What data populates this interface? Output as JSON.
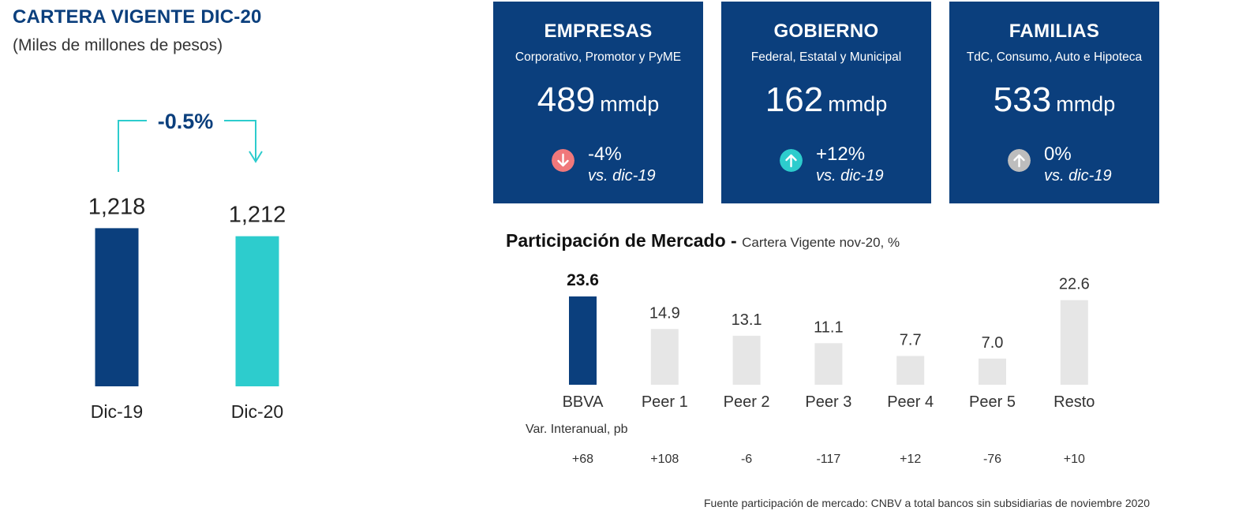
{
  "left": {
    "title": "CARTERA VIGENTE DIC-20",
    "subtitle": "(Miles de millones de pesos)",
    "change_label": "-0.5%"
  },
  "cards": [
    {
      "title": "EMPRESAS",
      "subtitle": "Corporativo, Promotor y PyME",
      "value": "489",
      "unit": "mmdp",
      "change": "-4%",
      "vs_word": "vs.",
      "vs_rest": " dic-19",
      "trend": "down",
      "icon": "arrow-down-icon",
      "icon_color": "#f0787b"
    },
    {
      "title": "GOBIERNO",
      "subtitle": "Federal, Estatal y Municipal",
      "value": "162",
      "unit": "mmdp",
      "change": "+12%",
      "vs_word": "vs.",
      "vs_rest": " dic-19",
      "trend": "up",
      "icon": "arrow-up-icon",
      "icon_color": "#2dcccd"
    },
    {
      "title": "FAMILIAS",
      "subtitle": "TdC, Consumo, Auto e Hipoteca",
      "value": "533",
      "unit": "mmdp",
      "change": "0%",
      "vs_word": "vs.",
      "vs_rest": " dic-19",
      "trend": "up",
      "icon": "arrow-up-icon",
      "icon_color": "#bdbdbd"
    }
  ],
  "market": {
    "title": "Participación de Mercado",
    "separator": " - ",
    "subtitle": "Cartera Vigente nov-20, %",
    "var_label": "Var. Interanual, pb",
    "footnote": "Fuente participación de mercado: CNBV a total bancos sin subsidiarias de noviembre 2020"
  },
  "chart_data": [
    {
      "type": "bar",
      "categories": [
        "Dic-19",
        "Dic-20"
      ],
      "values": [
        1218,
        1212
      ],
      "value_labels": [
        "1,218",
        "1,212"
      ],
      "change": "-0.5%",
      "colors": [
        "#0b3f7d",
        "#2dcccd"
      ]
    },
    {
      "type": "bar",
      "title": "Participación de Mercado",
      "subtitle": "Cartera Vigente nov-20, %",
      "categories": [
        "BBVA",
        "Peer 1",
        "Peer 2",
        "Peer 3",
        "Peer 4",
        "Peer 5",
        "Resto"
      ],
      "values": [
        23.6,
        14.9,
        13.1,
        11.1,
        7.7,
        7.0,
        22.6
      ],
      "value_labels": [
        "23.6",
        "14.9",
        "13.1",
        "11.1",
        "7.7",
        "7.0",
        "22.6"
      ],
      "secondary_label": "Var. Interanual, pb",
      "secondary_values": [
        "+68",
        "+108",
        "-6",
        "-117",
        "+12",
        "-76",
        "+10"
      ],
      "colors": {
        "highlight": "#0b3f7d",
        "default": "#e6e6e6"
      }
    }
  ]
}
